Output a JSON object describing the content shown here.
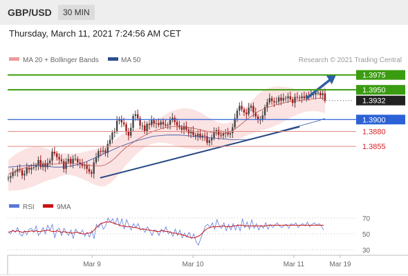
{
  "header": {
    "pair": "GBP/USD",
    "timeframe": "30 MIN"
  },
  "datetime": "Thursday, March 11, 2021 7:24:56 AM CET",
  "legend": {
    "ma_bollinger": "MA 20 + Bollinger Bands",
    "ma50": "MA 50",
    "copyright": "Research © 2021 Trading Central"
  },
  "rsi_legend": {
    "rsi": "RSI",
    "ma9": "9MA"
  },
  "colors": {
    "resistance": "#3a9c10",
    "support": "#2c62d6",
    "weak_support": "#e08880",
    "weak_support_text": "#d22222",
    "current": "#222222",
    "arrow": "#2d5da6",
    "trendline": "#2a4a85",
    "candle_up": "#444444",
    "candle_down": "#a01818",
    "bollinger": "#fadada",
    "ma20": "#c05050",
    "ma50": "#3050a0",
    "rsi": "#5a78d8",
    "rsi_ma": "#cc1111"
  },
  "chart_data": [
    {
      "type": "candlestick",
      "title": "GBP/USD",
      "timeframe": "30 MIN",
      "ylim": [
        1.3782,
        1.3985
      ],
      "x_ticks": [
        "Mar 9",
        "Mar 10",
        "Mar 11",
        "Mar 19"
      ],
      "levels": [
        {
          "value": 1.3975,
          "label": "1.3975",
          "kind": "resistance"
        },
        {
          "value": 1.395,
          "label": "1.3950",
          "kind": "resistance"
        },
        {
          "value": 1.3932,
          "label": "1.3932",
          "kind": "current"
        },
        {
          "value": 1.39,
          "label": "1.3900",
          "kind": "support"
        },
        {
          "value": 1.388,
          "label": "1.3880",
          "kind": "weak_support"
        },
        {
          "value": 1.3855,
          "label": "1.3855",
          "kind": "weak_support"
        }
      ],
      "close": [
        1.3802,
        1.3805,
        1.3811,
        1.3812,
        1.3817,
        1.3815,
        1.3806,
        1.3809,
        1.3819,
        1.3816,
        1.3819,
        1.382,
        1.3823,
        1.3832,
        1.382,
        1.3826,
        1.382,
        1.3827,
        1.3831,
        1.3846,
        1.3843,
        1.3837,
        1.3833,
        1.383,
        1.3817,
        1.3829,
        1.3834,
        1.3826,
        1.3834,
        1.3834,
        1.3828,
        1.3826,
        1.3822,
        1.3823,
        1.3817,
        1.3812,
        1.3809,
        1.3828,
        1.3836,
        1.3847,
        1.3846,
        1.3848,
        1.3844,
        1.3859,
        1.3866,
        1.3878,
        1.388,
        1.3898,
        1.3901,
        1.3895,
        1.3892,
        1.388,
        1.3873,
        1.3886,
        1.3906,
        1.3909,
        1.3902,
        1.389,
        1.389,
        1.388,
        1.3893,
        1.3891,
        1.3899,
        1.3893,
        1.3894,
        1.3891,
        1.3896,
        1.3892,
        1.389,
        1.3891,
        1.3899,
        1.3903,
        1.3896,
        1.389,
        1.3887,
        1.3883,
        1.3889,
        1.3883,
        1.3877,
        1.3881,
        1.3874,
        1.3872,
        1.3876,
        1.387,
        1.3873,
        1.3872,
        1.3861,
        1.3865,
        1.3869,
        1.3879,
        1.3882,
        1.3874,
        1.3873,
        1.3877,
        1.3878,
        1.3875,
        1.3877,
        1.3887,
        1.3902,
        1.3915,
        1.3923,
        1.3917,
        1.3912,
        1.3909,
        1.392,
        1.3923,
        1.3912,
        1.3905,
        1.39,
        1.39,
        1.3907,
        1.3921,
        1.3929,
        1.3936,
        1.3931,
        1.3929,
        1.393,
        1.3937,
        1.3932,
        1.3936,
        1.3936,
        1.3939,
        1.3934,
        1.3928,
        1.3938,
        1.3937,
        1.3936,
        1.3939,
        1.3936,
        1.3941,
        1.394,
        1.3941,
        1.3942,
        1.3945,
        1.3945,
        1.3941,
        1.3944,
        1.3932
      ],
      "ma20": [
        1.3808,
        1.3812,
        1.3815,
        1.3818,
        1.3821,
        1.3823,
        1.3825,
        1.3826,
        1.3826,
        1.3825,
        1.3826,
        1.3827,
        1.3827,
        1.3826,
        1.3825,
        1.3824,
        1.3823,
        1.3822,
        1.3822,
        1.3824,
        1.3829,
        1.3836,
        1.3845,
        1.3853,
        1.3859,
        1.3865,
        1.387,
        1.3875,
        1.3879,
        1.3882,
        1.3885,
        1.3887,
        1.3888,
        1.3888,
        1.3888,
        1.3887,
        1.3886,
        1.3884,
        1.3882,
        1.388,
        1.3878,
        1.3877,
        1.3876,
        1.3878,
        1.3882,
        1.3888,
        1.3895,
        1.3902,
        1.3908,
        1.3914,
        1.3918,
        1.3921,
        1.3924,
        1.3926,
        1.3928,
        1.393,
        1.3931,
        1.3932,
        1.3933,
        1.3934,
        1.3935,
        1.3936,
        1.3936
      ],
      "ma50": [
        1.382,
        1.3821,
        1.3822,
        1.3823,
        1.3823,
        1.3822,
        1.3821,
        1.382,
        1.382,
        1.3821,
        1.3823,
        1.3826,
        1.383,
        1.3835,
        1.384,
        1.3845,
        1.385,
        1.3855,
        1.3859,
        1.3863,
        1.3866,
        1.3869,
        1.3872,
        1.3873,
        1.3874,
        1.3874,
        1.3874,
        1.3873,
        1.3872,
        1.3871,
        1.387,
        1.3869,
        1.3868,
        1.3867,
        1.3866,
        1.3866,
        1.3866,
        1.3868,
        1.3871,
        1.3874,
        1.3877,
        1.388,
        1.3883,
        1.3886,
        1.3889,
        1.3892,
        1.3895,
        1.3898,
        1.3902
      ],
      "trendlines": [
        {
          "from": {
            "index": 0.29,
            "value": 1.3802
          },
          "to": {
            "index": 0.92,
            "value": 1.3888
          }
        }
      ],
      "forecast_arrow": {
        "from": {
          "index": 0.94,
          "value": 1.3935
        },
        "to": {
          "index": 1.03,
          "value": 1.3972
        }
      }
    },
    {
      "type": "line",
      "title": "RSI",
      "ylim": [
        30,
        70
      ],
      "y_ticks": [
        70,
        50,
        30
      ],
      "series": [
        {
          "name": "RSI",
          "values": [
            53,
            50,
            55,
            52,
            58,
            50,
            47,
            54,
            49,
            56,
            57,
            52,
            60,
            48,
            52,
            58,
            50,
            61,
            55,
            62,
            45,
            55,
            57,
            48,
            57,
            52,
            48,
            55,
            44,
            56,
            52,
            50,
            55,
            47,
            52,
            46,
            54,
            44,
            62,
            58,
            64,
            56,
            60,
            70,
            65,
            69,
            62,
            70,
            60,
            69,
            56,
            68,
            61,
            55,
            63,
            58,
            63,
            55,
            57,
            52,
            59,
            54,
            48,
            55,
            54,
            48,
            56,
            52,
            59,
            50,
            53,
            47,
            56,
            48,
            55,
            45,
            51,
            46,
            52,
            44,
            50,
            40,
            36,
            44,
            52,
            60,
            62,
            58,
            64,
            56,
            68,
            60,
            57,
            64,
            54,
            62,
            55,
            63,
            55,
            62,
            54,
            69,
            58,
            65,
            56,
            68,
            57,
            63,
            55,
            61,
            57,
            64,
            56,
            62,
            58,
            61,
            64,
            60,
            58,
            61,
            62,
            57,
            63,
            61,
            64,
            58,
            61,
            63,
            60,
            65,
            59,
            62,
            64,
            61,
            63,
            60,
            55
          ]
        },
        {
          "name": "9MA",
          "values": [
            52,
            53,
            54,
            53,
            54,
            53,
            52,
            53,
            53,
            53,
            54,
            53,
            54,
            53,
            53,
            54,
            54,
            55,
            54,
            53,
            53,
            54,
            53,
            52,
            53,
            52,
            52,
            51,
            51,
            52,
            52,
            51,
            50,
            50,
            51,
            51,
            52,
            55,
            58,
            61,
            63,
            64,
            65,
            65,
            65,
            64,
            63,
            62,
            61,
            60,
            60,
            59,
            59,
            59,
            58,
            58,
            57,
            56,
            56,
            56,
            55,
            55,
            54,
            54,
            53,
            53,
            54,
            54,
            53,
            53,
            52,
            51,
            51,
            50,
            50,
            49,
            48,
            47,
            46,
            45,
            45,
            46,
            47,
            49,
            52,
            55,
            57,
            58,
            59,
            59,
            59,
            59,
            60,
            60,
            59,
            59,
            59,
            60,
            60,
            61,
            61,
            61,
            60,
            60,
            60,
            60,
            60,
            60,
            60,
            60,
            60,
            60,
            61,
            61,
            61,
            61,
            61,
            61,
            61,
            61,
            61,
            61,
            61,
            61,
            61,
            61,
            61,
            61,
            61,
            61,
            61,
            61,
            61,
            61,
            61,
            61,
            61
          ]
        }
      ]
    }
  ]
}
